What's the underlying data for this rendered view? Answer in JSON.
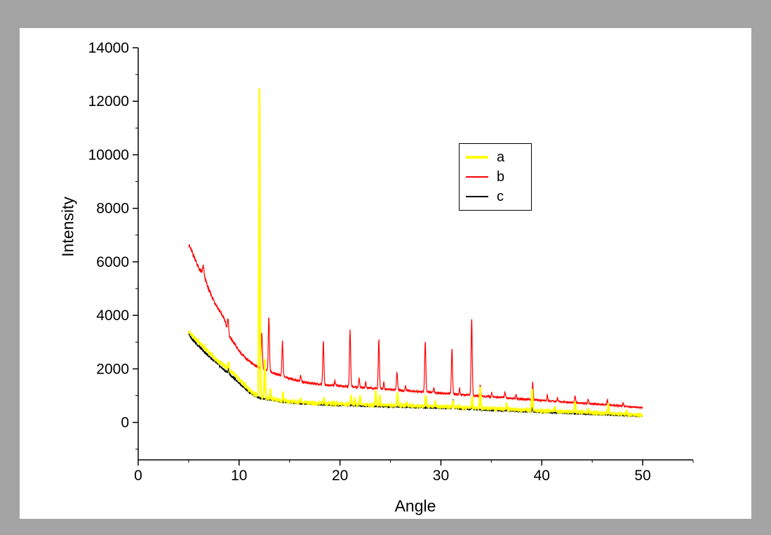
{
  "window": {
    "workspace_color": "#a4a4a4",
    "page_color": "#ffffff"
  },
  "chart_data": {
    "type": "line",
    "title": "",
    "xlabel": "Angle",
    "ylabel": "Intensity",
    "xlim": [
      0,
      55
    ],
    "ylim": [
      -1400,
      14000
    ],
    "x_ticks": [
      0,
      10,
      20,
      30,
      40,
      50
    ],
    "x_minor_ticks": [
      5,
      15,
      25,
      35,
      45,
      55
    ],
    "y_ticks": [
      0,
      2000,
      4000,
      6000,
      8000,
      10000,
      12000,
      14000
    ],
    "y_minor_ticks": [
      -1000,
      1000,
      3000,
      5000,
      7000,
      9000,
      11000,
      13000
    ],
    "grid": false,
    "legend_position": "upper-center-right",
    "axis_color": "#000000",
    "x_start": 5.0,
    "x_end": 50.0,
    "x_step": 0.02,
    "noise_k": 1.1,
    "legend": {
      "entries": [
        {
          "label": "a",
          "color": "#ffff00",
          "sample_thickness": 4
        },
        {
          "label": "b",
          "color": "#ff0000",
          "sample_thickness": 2
        },
        {
          "label": "c",
          "color": "#000000",
          "sample_thickness": 2
        }
      ]
    },
    "series": [
      {
        "name": "a",
        "color": "#ffff00",
        "width": 2.4,
        "seed": 1,
        "baseline": [
          [
            5,
            3400
          ],
          [
            5.5,
            3180
          ],
          [
            6,
            2980
          ],
          [
            6.5,
            2820
          ],
          [
            7,
            2620
          ],
          [
            7.5,
            2430
          ],
          [
            8,
            2280
          ],
          [
            8.5,
            2120
          ],
          [
            9,
            1970
          ],
          [
            9.5,
            1800
          ],
          [
            10,
            1620
          ],
          [
            10.5,
            1420
          ],
          [
            11,
            1220
          ],
          [
            11.5,
            1060
          ],
          [
            12,
            960
          ],
          [
            12.5,
            920
          ],
          [
            13,
            890
          ],
          [
            13.5,
            855
          ],
          [
            14,
            825
          ],
          [
            15,
            780
          ],
          [
            16,
            750
          ],
          [
            17,
            730
          ],
          [
            18,
            715
          ],
          [
            19,
            700
          ],
          [
            20,
            690
          ],
          [
            21,
            680
          ],
          [
            22,
            670
          ],
          [
            23,
            660
          ],
          [
            24,
            650
          ],
          [
            25,
            640
          ],
          [
            26,
            630
          ],
          [
            27,
            620
          ],
          [
            28,
            610
          ],
          [
            29,
            600
          ],
          [
            30,
            590
          ],
          [
            31,
            575
          ],
          [
            32,
            560
          ],
          [
            33,
            545
          ],
          [
            34,
            530
          ],
          [
            35,
            515
          ],
          [
            36,
            500
          ],
          [
            37,
            485
          ],
          [
            38,
            470
          ],
          [
            39,
            455
          ],
          [
            40,
            440
          ],
          [
            41,
            425
          ],
          [
            42,
            410
          ],
          [
            43,
            395
          ],
          [
            44,
            380
          ],
          [
            45,
            365
          ],
          [
            46,
            350
          ],
          [
            47,
            330
          ],
          [
            48,
            305
          ],
          [
            49,
            285
          ],
          [
            50,
            270
          ]
        ],
        "peaks": [
          [
            8.95,
            260,
            0.07
          ],
          [
            12.02,
            11480,
            0.07
          ],
          [
            12.55,
            1420,
            0.07
          ],
          [
            13.1,
            350,
            0.06
          ],
          [
            14.35,
            280,
            0.06
          ],
          [
            16.1,
            150,
            0.06
          ],
          [
            18.4,
            200,
            0.06
          ],
          [
            21.1,
            320,
            0.07
          ],
          [
            21.5,
            200,
            0.06
          ],
          [
            22.0,
            320,
            0.07
          ],
          [
            23.55,
            520,
            0.07
          ],
          [
            23.95,
            360,
            0.06
          ],
          [
            25.7,
            470,
            0.07
          ],
          [
            26.6,
            150,
            0.06
          ],
          [
            28.5,
            400,
            0.07
          ],
          [
            29.45,
            170,
            0.06
          ],
          [
            31.2,
            220,
            0.06
          ],
          [
            33.1,
            420,
            0.06
          ],
          [
            33.9,
            760,
            0.07
          ],
          [
            36.5,
            210,
            0.06
          ],
          [
            39.05,
            820,
            0.07
          ],
          [
            41.3,
            160,
            0.06
          ],
          [
            43.3,
            420,
            0.06
          ],
          [
            44.6,
            150,
            0.05
          ],
          [
            46.6,
            360,
            0.06
          ],
          [
            48.4,
            160,
            0.05
          ]
        ]
      },
      {
        "name": "b",
        "color": "#ff0000",
        "width": 1.2,
        "seed": 2,
        "baseline": [
          [
            5,
            6650
          ],
          [
            5.3,
            6400
          ],
          [
            5.6,
            6150
          ],
          [
            6,
            5750
          ],
          [
            6.3,
            5600
          ],
          [
            6.6,
            5400
          ],
          [
            7,
            4950
          ],
          [
            7.5,
            4550
          ],
          [
            8,
            4200
          ],
          [
            8.5,
            3900
          ],
          [
            9,
            3250
          ],
          [
            9.5,
            2950
          ],
          [
            10,
            2680
          ],
          [
            10.5,
            2450
          ],
          [
            11,
            2280
          ],
          [
            11.5,
            2150
          ],
          [
            12,
            2050
          ],
          [
            12.5,
            1980
          ],
          [
            13,
            1900
          ],
          [
            13.5,
            1830
          ],
          [
            14,
            1770
          ],
          [
            14.5,
            1700
          ],
          [
            15,
            1640
          ],
          [
            15.5,
            1590
          ],
          [
            16,
            1540
          ],
          [
            16.5,
            1500
          ],
          [
            17,
            1470
          ],
          [
            17.5,
            1440
          ],
          [
            18,
            1420
          ],
          [
            18.5,
            1400
          ],
          [
            19,
            1390
          ],
          [
            19.5,
            1380
          ],
          [
            20,
            1360
          ],
          [
            21,
            1340
          ],
          [
            22,
            1310
          ],
          [
            23,
            1280
          ],
          [
            24,
            1255
          ],
          [
            25,
            1230
          ],
          [
            26,
            1200
          ],
          [
            27,
            1175
          ],
          [
            28,
            1150
          ],
          [
            29,
            1120
          ],
          [
            30,
            1095
          ],
          [
            31,
            1070
          ],
          [
            32,
            1040
          ],
          [
            33,
            1010
          ],
          [
            34,
            985
          ],
          [
            35,
            955
          ],
          [
            36,
            930
          ],
          [
            37,
            900
          ],
          [
            38,
            875
          ],
          [
            39,
            850
          ],
          [
            40,
            820
          ],
          [
            41,
            795
          ],
          [
            42,
            770
          ],
          [
            43,
            745
          ],
          [
            44,
            720
          ],
          [
            45,
            695
          ],
          [
            46,
            670
          ],
          [
            47,
            640
          ],
          [
            48,
            610
          ],
          [
            49,
            575
          ],
          [
            50,
            545
          ]
        ],
        "peaks": [
          [
            6.45,
            320,
            0.1
          ],
          [
            8.9,
            520,
            0.08
          ],
          [
            12.25,
            1300,
            0.08
          ],
          [
            12.95,
            2050,
            0.08
          ],
          [
            14.3,
            1280,
            0.08
          ],
          [
            16.1,
            230,
            0.07
          ],
          [
            18.35,
            1620,
            0.08
          ],
          [
            19.5,
            180,
            0.07
          ],
          [
            21.0,
            2080,
            0.08
          ],
          [
            21.9,
            330,
            0.07
          ],
          [
            22.55,
            230,
            0.06
          ],
          [
            23.85,
            1820,
            0.08
          ],
          [
            24.35,
            260,
            0.06
          ],
          [
            25.65,
            640,
            0.08
          ],
          [
            26.5,
            160,
            0.06
          ],
          [
            28.45,
            1870,
            0.08
          ],
          [
            29.3,
            200,
            0.06
          ],
          [
            31.1,
            1650,
            0.08
          ],
          [
            31.85,
            220,
            0.06
          ],
          [
            33.05,
            2830,
            0.08
          ],
          [
            33.9,
            420,
            0.07
          ],
          [
            35.05,
            160,
            0.06
          ],
          [
            36.35,
            210,
            0.07
          ],
          [
            37.45,
            160,
            0.06
          ],
          [
            39.1,
            660,
            0.07
          ],
          [
            40.55,
            210,
            0.06
          ],
          [
            41.55,
            160,
            0.06
          ],
          [
            43.3,
            260,
            0.07
          ],
          [
            44.6,
            160,
            0.06
          ],
          [
            46.5,
            210,
            0.06
          ],
          [
            48.05,
            130,
            0.06
          ]
        ]
      },
      {
        "name": "c",
        "color": "#000000",
        "width": 1.1,
        "seed": 3,
        "baseline": [
          [
            5,
            3300
          ],
          [
            5.5,
            3050
          ],
          [
            6,
            2850
          ],
          [
            6.5,
            2650
          ],
          [
            7,
            2480
          ],
          [
            7.5,
            2300
          ],
          [
            8,
            2130
          ],
          [
            8.5,
            1970
          ],
          [
            9,
            1810
          ],
          [
            9.5,
            1650
          ],
          [
            10,
            1480
          ],
          [
            10.5,
            1300
          ],
          [
            11,
            1130
          ],
          [
            11.5,
            1000
          ],
          [
            12,
            910
          ],
          [
            12.5,
            875
          ],
          [
            13,
            850
          ],
          [
            13.5,
            820
          ],
          [
            14,
            790
          ],
          [
            15,
            740
          ],
          [
            16,
            710
          ],
          [
            17,
            690
          ],
          [
            18,
            670
          ],
          [
            19,
            655
          ],
          [
            20,
            645
          ],
          [
            21,
            635
          ],
          [
            22,
            625
          ],
          [
            23,
            612
          ],
          [
            24,
            600
          ],
          [
            25,
            590
          ],
          [
            26,
            580
          ],
          [
            27,
            570
          ],
          [
            28,
            560
          ],
          [
            29,
            550
          ],
          [
            30,
            540
          ],
          [
            31,
            525
          ],
          [
            32,
            505
          ],
          [
            33,
            490
          ],
          [
            34,
            472
          ],
          [
            35,
            455
          ],
          [
            36,
            440
          ],
          [
            37,
            425
          ],
          [
            38,
            410
          ],
          [
            39,
            395
          ],
          [
            40,
            380
          ],
          [
            41,
            365
          ],
          [
            42,
            350
          ],
          [
            43,
            335
          ],
          [
            44,
            320
          ],
          [
            45,
            305
          ],
          [
            46,
            290
          ],
          [
            47,
            275
          ],
          [
            48,
            260
          ],
          [
            49,
            245
          ],
          [
            50,
            232
          ]
        ],
        "peaks": [
          [
            8.95,
            170,
            0.07
          ],
          [
            31.2,
            320,
            0.08
          ],
          [
            33.1,
            160,
            0.06
          ],
          [
            36.6,
            130,
            0.06
          ],
          [
            39.05,
            150,
            0.06
          ]
        ]
      }
    ]
  }
}
